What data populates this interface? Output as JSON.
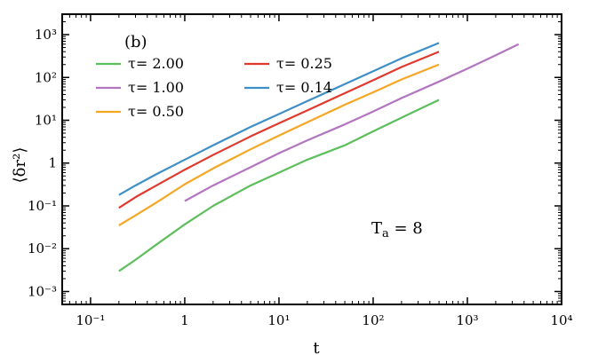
{
  "chart_data": {
    "type": "line",
    "panel_label": "(b)",
    "xlabel": "t",
    "ylabel": "⟨δr²⟩",
    "annotation": "T_a = 8",
    "xscale": "log",
    "yscale": "log",
    "xlim": [
      0.05,
      10000
    ],
    "ylim": [
      0.0005,
      3000
    ],
    "grid": false,
    "legend_position": "top-left",
    "x_ticks": [
      {
        "value": 0.1,
        "label": "10⁻¹"
      },
      {
        "value": 1,
        "label": "1"
      },
      {
        "value": 10,
        "label": "10¹"
      },
      {
        "value": 100,
        "label": "10²"
      },
      {
        "value": 1000,
        "label": "10³"
      },
      {
        "value": 10000,
        "label": "10⁴"
      }
    ],
    "y_ticks": [
      {
        "value": 0.001,
        "label": "10⁻³"
      },
      {
        "value": 0.01,
        "label": "10⁻²"
      },
      {
        "value": 0.1,
        "label": "10⁻¹"
      },
      {
        "value": 1,
        "label": "1"
      },
      {
        "value": 10,
        "label": "10¹"
      },
      {
        "value": 100,
        "label": "10²"
      },
      {
        "value": 1000,
        "label": "10³"
      }
    ],
    "series": [
      {
        "name": "τ= 2.00",
        "color": "#5cbf5c",
        "x": [
          0.2,
          0.3,
          0.5,
          1,
          2,
          5,
          10,
          20,
          50,
          100,
          200,
          500
        ],
        "y": [
          0.003,
          0.0055,
          0.0125,
          0.037,
          0.1,
          0.3,
          0.6,
          1.2,
          2.6,
          5.5,
          11.5,
          30
        ]
      },
      {
        "name": "τ= 1.00",
        "color": "#b374c0",
        "x": [
          1,
          2,
          5,
          10,
          20,
          50,
          100,
          200,
          500,
          1000,
          2000,
          3500
        ],
        "y": [
          0.13,
          0.3,
          0.8,
          1.7,
          3.4,
          8,
          16,
          33,
          80,
          160,
          330,
          600
        ]
      },
      {
        "name": "τ= 0.50",
        "color": "#f5a623",
        "x": [
          0.2,
          0.3,
          0.5,
          1,
          2,
          5,
          10,
          20,
          50,
          100,
          200,
          500
        ],
        "y": [
          0.035,
          0.06,
          0.12,
          0.32,
          0.75,
          2.1,
          4.4,
          9,
          23,
          45,
          90,
          200
        ]
      },
      {
        "name": "τ= 0.25",
        "color": "#e03a2e",
        "x": [
          0.2,
          0.3,
          0.5,
          1,
          2,
          5,
          10,
          20,
          50,
          100,
          200,
          500
        ],
        "y": [
          0.09,
          0.16,
          0.3,
          0.7,
          1.55,
          4.2,
          8.5,
          17,
          43,
          86,
          175,
          400
        ]
      },
      {
        "name": "τ= 0.14",
        "color": "#3f8fc7",
        "x": [
          0.2,
          0.3,
          0.5,
          1,
          2,
          5,
          10,
          20,
          50,
          100,
          200,
          500
        ],
        "y": [
          0.18,
          0.3,
          0.55,
          1.2,
          2.6,
          7,
          14,
          28,
          70,
          140,
          280,
          640
        ]
      }
    ]
  }
}
